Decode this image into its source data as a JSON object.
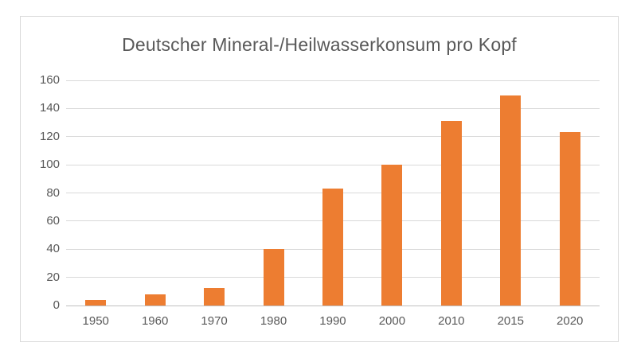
{
  "chart_data": {
    "type": "bar",
    "title": "Deutscher Mineral-/Heilwasserkonsum pro Kopf",
    "categories": [
      "1950",
      "1960",
      "1970",
      "1980",
      "1990",
      "2000",
      "2010",
      "2015",
      "2020"
    ],
    "values": [
      4,
      8,
      12.5,
      40,
      83,
      100,
      131,
      149,
      123
    ],
    "xlabel": "",
    "ylabel": "",
    "ylim": [
      0,
      160
    ],
    "ytick_step": 20,
    "yticks": [
      0,
      20,
      40,
      60,
      80,
      100,
      120,
      140,
      160
    ],
    "grid": true,
    "legend": false,
    "colors": {
      "bar": "#ED7D31",
      "text": "#595959",
      "gridline": "#D9D9D9",
      "axis_line": "#C0C0C0",
      "frame_border": "#D9D9D9",
      "background": "#FFFFFF"
    }
  }
}
